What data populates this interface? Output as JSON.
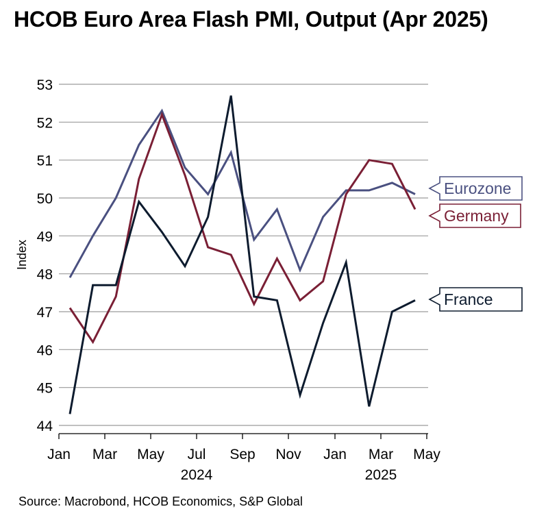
{
  "header": {
    "title": "HCOB Euro Area Flash PMI, Output (Apr 2025)"
  },
  "footer": {
    "source": "Source: Macrobond, HCOB Economics, S&P Global"
  },
  "chart_data": {
    "type": "line",
    "title": "HCOB Euro Area Flash PMI, Output (Apr 2025)",
    "xlabel": "",
    "ylabel": "Index",
    "ylim": [
      44,
      53
    ],
    "yticks": [
      44,
      45,
      46,
      47,
      48,
      49,
      50,
      51,
      52,
      53
    ],
    "grid": true,
    "x": [
      "2024-01",
      "2024-02",
      "2024-03",
      "2024-04",
      "2024-05",
      "2024-06",
      "2024-07",
      "2024-08",
      "2024-09",
      "2024-10",
      "2024-11",
      "2024-12",
      "2025-01",
      "2025-02",
      "2025-03",
      "2025-04"
    ],
    "x_tick_labels": [
      "Jan",
      "Mar",
      "May",
      "Jul",
      "Sep",
      "Nov",
      "Jan",
      "Mar",
      "May"
    ],
    "x_year_labels": [
      "2024",
      "2025"
    ],
    "series": [
      {
        "name": "Eurozone",
        "color": "#4a5080",
        "values": [
          47.9,
          49.0,
          50.0,
          51.4,
          52.3,
          50.8,
          50.1,
          51.2,
          48.9,
          49.7,
          48.1,
          49.5,
          50.2,
          50.2,
          50.4,
          50.1
        ]
      },
      {
        "name": "Germany",
        "color": "#7a1f35",
        "values": [
          47.1,
          46.2,
          47.4,
          50.5,
          52.2,
          50.6,
          48.7,
          48.5,
          47.2,
          48.4,
          47.3,
          47.8,
          50.1,
          51.0,
          50.9,
          49.7
        ]
      },
      {
        "name": "France",
        "color": "#0d1b2e",
        "values": [
          44.3,
          47.7,
          47.7,
          49.9,
          49.1,
          48.2,
          49.5,
          52.7,
          47.4,
          47.3,
          44.8,
          46.7,
          48.3,
          44.5,
          47.0,
          47.3
        ]
      }
    ]
  }
}
